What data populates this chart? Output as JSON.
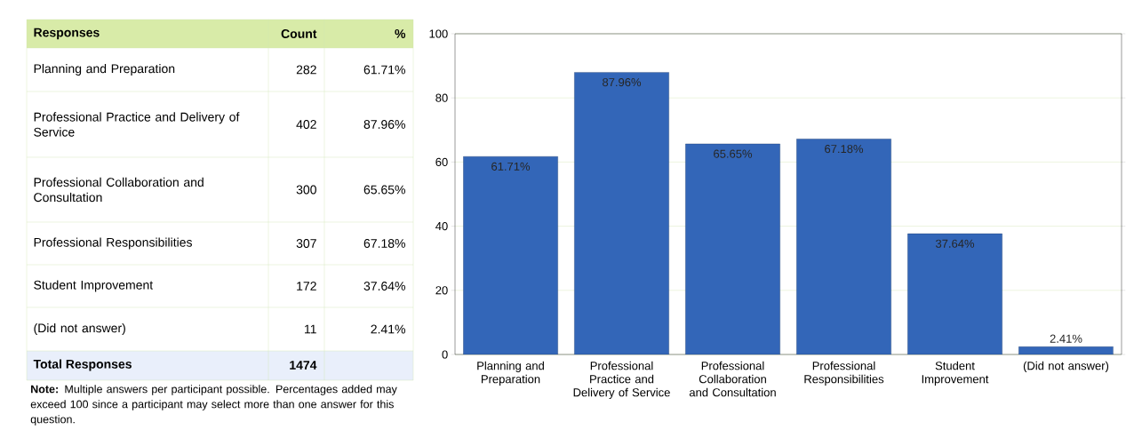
{
  "chart_data": [
    {
      "type": "other",
      "xlabel": "Responses",
      "categories": [
        "Planning and Preparation",
        "Professional Practice and Delivery of Service",
        "Professional Collaboration and Consultation",
        "Professional Responsibilities",
        "Student Improvement",
        "(Did not answer)"
      ],
      "series": [
        {
          "name": "Count",
          "values": [
            282,
            402,
            300,
            307,
            172,
            11
          ]
        },
        {
          "name": "%",
          "values": [
            61.71,
            87.96,
            65.65,
            67.18,
            37.64,
            2.41
          ],
          "value_labels": [
            "61.71%",
            "87.96%",
            "65.65%",
            "67.18%",
            "37.64%",
            "2.41%"
          ]
        }
      ],
      "data_labels": true,
      "annotations": [
        "Total Responses",
        "1474",
        "**Note:** Multiple answers per participant possible. Percentages added may exceed 100 since a participant may select more than one answer for this question."
      ]
    },
    {
      "type": "bar",
      "categories": [
        "Planning and Preparation",
        "Professional Practice and Delivery of Service",
        "Professional Collaboration and Consultation",
        "Professional Responsibilities",
        "Student Improvement",
        "(Did not answer)"
      ],
      "values": [
        61.71,
        87.96,
        65.65,
        67.18,
        37.64,
        2.41
      ],
      "value_labels": [
        "61.71%",
        "87.96%",
        "65.65%",
        "67.18%",
        "37.64%",
        "2.41%"
      ],
      "color": "#3366b8",
      "ylim": [
        0,
        100
      ],
      "yticks": [
        0,
        20,
        40,
        60,
        80,
        100
      ],
      "grid": "y"
    }
  ]
}
